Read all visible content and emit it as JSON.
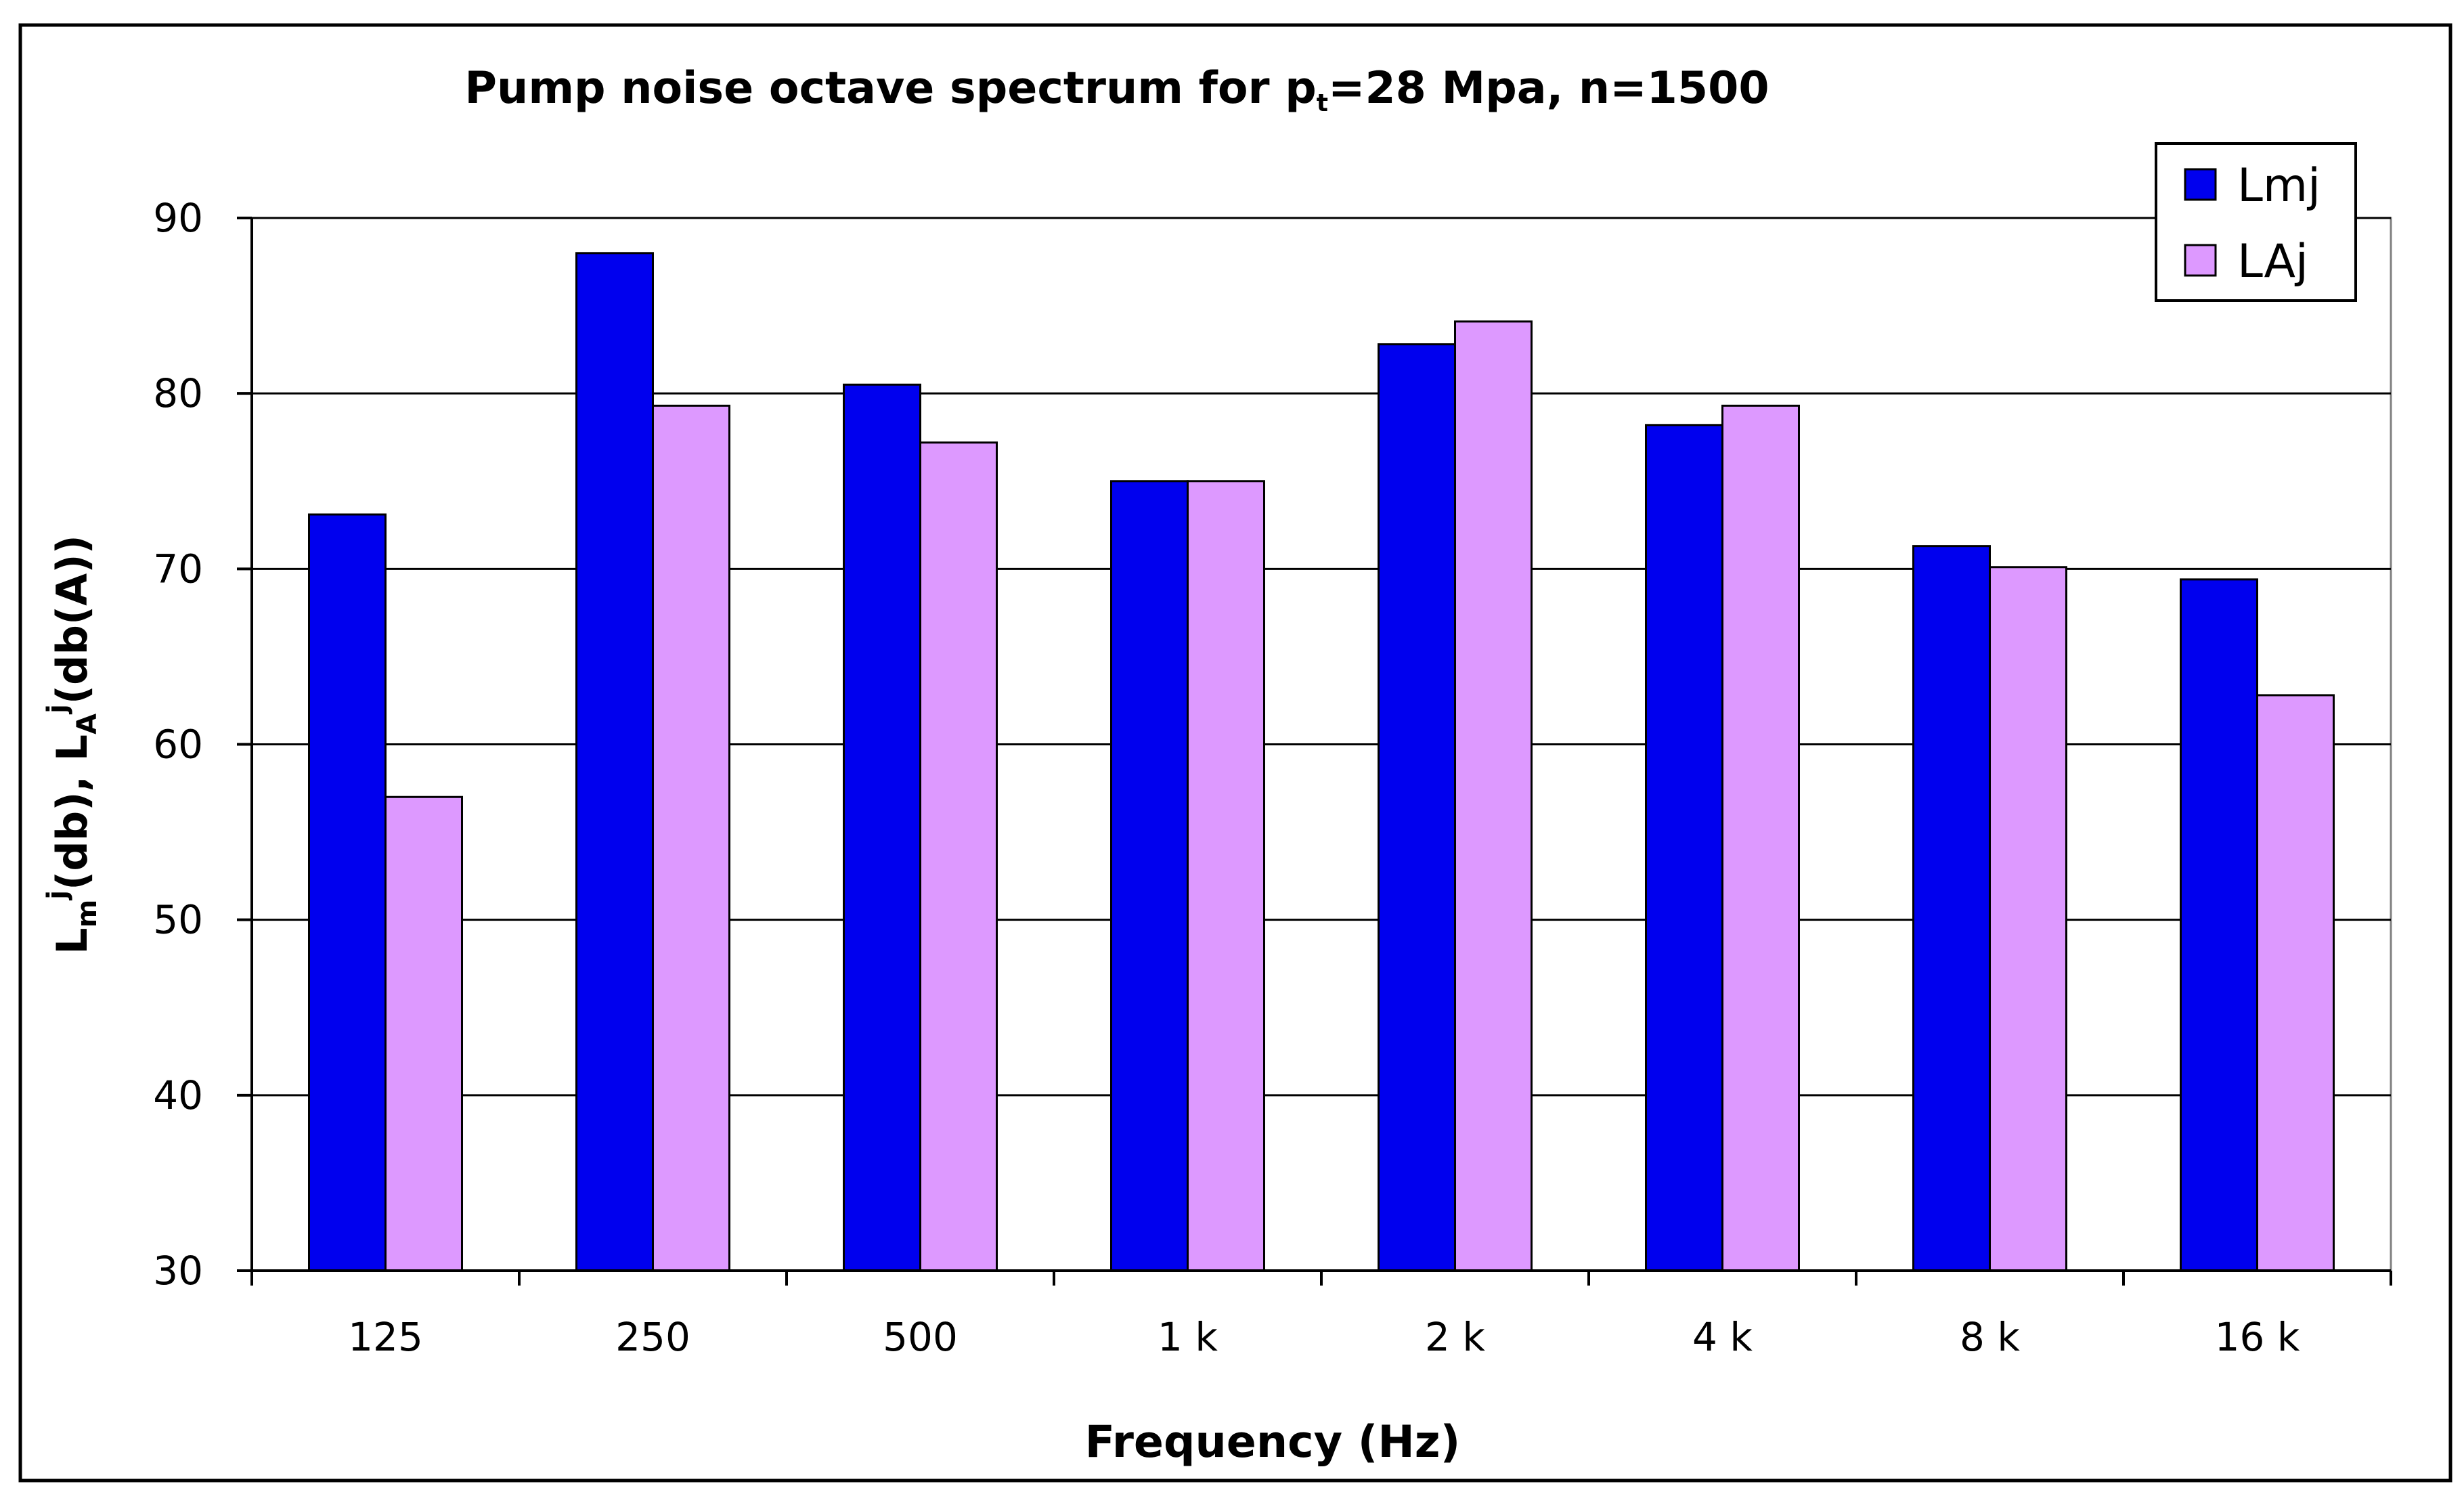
{
  "chart_data": {
    "type": "bar",
    "title_pre": "Pump noise octave spectrum for p",
    "title_sub": "t",
    "title_post": "=28 Mpa, n=1500",
    "xlabel": "Frequency (Hz)",
    "ylabel": {
      "p1": "L",
      "p1_sub": "m",
      "p1_sup": "j",
      "p2": "(db), L",
      "p2_sub": "A",
      "p2_sup": "j",
      "p3": "(db(A))"
    },
    "categories": [
      "125",
      "250",
      "500",
      "1 k",
      "2 k",
      "4 k",
      "8 k",
      "16 k"
    ],
    "ylim": [
      30,
      90
    ],
    "yticks": [
      "30",
      "40",
      "50",
      "60",
      "70",
      "80",
      "90"
    ],
    "grid": true,
    "legend_position": "top-right",
    "series": [
      {
        "name": "Lmj",
        "color": "#0000ee",
        "values": [
          73.1,
          88.0,
          80.5,
          75.0,
          82.8,
          78.2,
          71.3,
          69.4
        ]
      },
      {
        "name": "LAj",
        "color": "#dd99ff",
        "values": [
          57.0,
          79.3,
          77.2,
          75.0,
          84.1,
          79.3,
          70.1,
          62.8
        ]
      }
    ]
  }
}
